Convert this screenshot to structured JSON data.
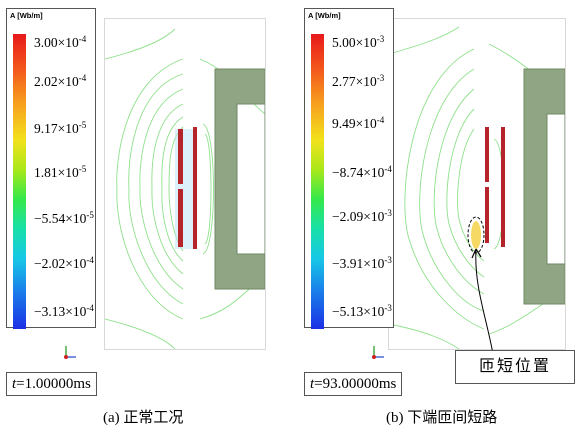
{
  "panel_a": {
    "legend_title": "A [Wb/m]",
    "ticks": [
      {
        "m": "3.00",
        "e": "-4"
      },
      {
        "m": "2.02",
        "e": "-4"
      },
      {
        "m": "9.17",
        "e": "-5"
      },
      {
        "m": "1.81",
        "e": "-5"
      },
      {
        "m": "−5.54",
        "e": "-5"
      },
      {
        "m": "−2.02",
        "e": "-4"
      },
      {
        "m": "−3.13",
        "e": "-4"
      }
    ],
    "time_label": "t",
    "time_value": "=1.00000ms",
    "caption": "(a) 正常工况"
  },
  "panel_b": {
    "legend_title": "A [Wb/m]",
    "ticks": [
      {
        "m": "5.00",
        "e": "-3"
      },
      {
        "m": "2.77",
        "e": "-3"
      },
      {
        "m": "9.49",
        "e": "-4"
      },
      {
        "m": "−8.74",
        "e": "-4"
      },
      {
        "m": "−2.09",
        "e": "-3"
      },
      {
        "m": "−3.91",
        "e": "-3"
      },
      {
        "m": "−5.13",
        "e": "-3"
      }
    ],
    "time_label": "t",
    "time_value": "=93.00000ms",
    "caption": "(b)  下端匝间短路",
    "callout": "匝短位置"
  },
  "times_sign": "×10",
  "colors": {
    "core": "#8fa583",
    "core_edge": "#6f8a63",
    "winding": "#b5242a",
    "contour": "#8fe08a",
    "frame": "#d8d8d8"
  }
}
